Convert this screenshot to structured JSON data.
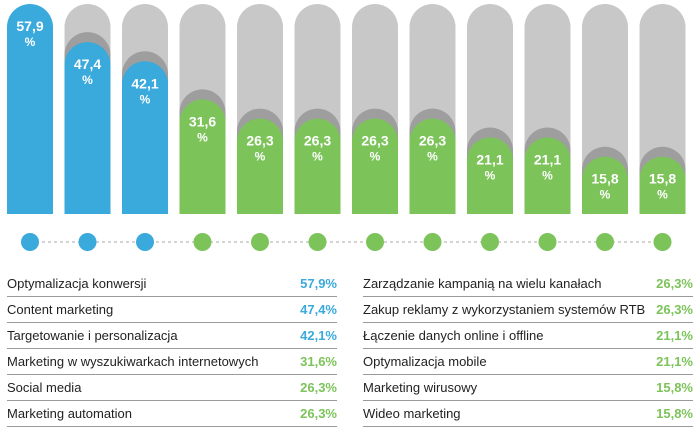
{
  "chart_data": {
    "type": "bar",
    "ylim": [
      0,
      57.9
    ],
    "unit": "%",
    "colors": {
      "blue": "#3aa9dc",
      "green": "#7cc35a",
      "track": "#c8c8c8",
      "shadow": "#9e9e9e",
      "connector": "#aaaaaa"
    },
    "categories": [
      "Optymalizacja konwersji",
      "Content marketing",
      "Targetowanie i personalizacja",
      "Marketing w wyszukiwarkach internetowych",
      "Social media",
      "Marketing automation",
      "Zarządzanie kampanią na wielu kanałach",
      "Zakup reklamy z wykorzystaniem systemów RTB",
      "Łączenie danych online i offline",
      "Optymalizacja mobile",
      "Marketing wirusowy",
      "Wideo marketing"
    ],
    "values": [
      57.9,
      47.4,
      42.1,
      31.6,
      26.3,
      26.3,
      26.3,
      26.3,
      21.1,
      21.1,
      15.8,
      15.8
    ],
    "bar_labels": [
      "57,9",
      "47,4",
      "42,1",
      "31,6",
      "26,3",
      "26,3",
      "26,3",
      "26,3",
      "21,1",
      "21,1",
      "15,8",
      "15,8"
    ],
    "series_color": [
      "blue",
      "blue",
      "blue",
      "green",
      "green",
      "green",
      "green",
      "green",
      "green",
      "green",
      "green",
      "green"
    ],
    "legend_left": [
      {
        "label": "Optymalizacja konwersji",
        "value": "57,9%",
        "color": "blue"
      },
      {
        "label": "Content marketing",
        "value": "47,4%",
        "color": "blue"
      },
      {
        "label": "Targetowanie i personalizacja",
        "value": "42,1%",
        "color": "blue"
      },
      {
        "label": "Marketing w wyszukiwarkach internetowych",
        "value": "31,6%",
        "color": "green"
      },
      {
        "label": "Social media",
        "value": "26,3%",
        "color": "green"
      },
      {
        "label": "Marketing automation",
        "value": "26,3%",
        "color": "green"
      }
    ],
    "legend_right": [
      {
        "label": "Zarządzanie kampanią na wielu kanałach",
        "value": "26,3%",
        "color": "green"
      },
      {
        "label": "Zakup reklamy z wykorzystaniem systemów RTB",
        "value": "26,3%",
        "color": "green"
      },
      {
        "label": "Łączenie danych online i offline",
        "value": "21,1%",
        "color": "green"
      },
      {
        "label": "Optymalizacja mobile",
        "value": "21,1%",
        "color": "green"
      },
      {
        "label": "Marketing wirusowy",
        "value": "15,8%",
        "color": "green"
      },
      {
        "label": "Wideo marketing",
        "value": "15,8%",
        "color": "green"
      }
    ]
  }
}
